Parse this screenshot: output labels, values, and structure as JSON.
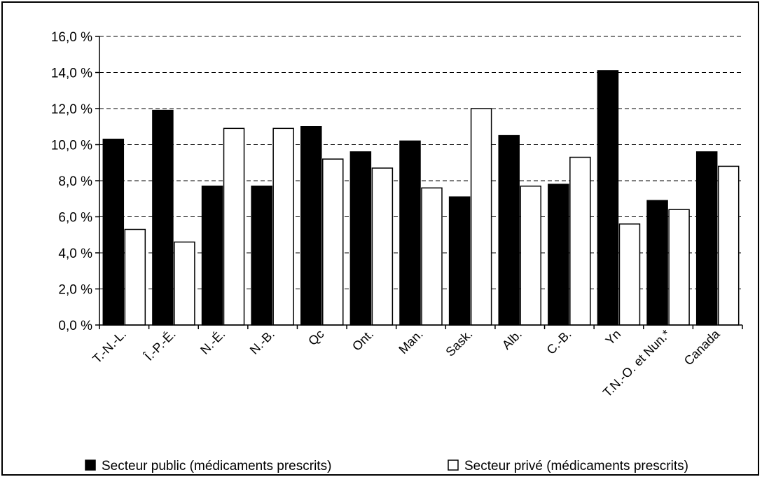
{
  "chart_data": {
    "type": "bar",
    "title": "",
    "xlabel": "",
    "ylabel": "",
    "ylim": [
      0,
      16
    ],
    "y_ticks": [
      0,
      2,
      4,
      6,
      8,
      10,
      12,
      14,
      16
    ],
    "y_tick_labels": [
      "0,0 %",
      "2,0 %",
      "4,0 %",
      "6,0 %",
      "8,0 %",
      "10,0 %",
      "12,0 %",
      "14,0 %",
      "16,0 %"
    ],
    "grid": "horizontal dashed",
    "legend_position": "bottom",
    "categories": [
      "T.-N.-L.",
      "Î.-P.-É.",
      "N.-É.",
      "N.-B.",
      "Qc",
      "Ont.",
      "Man.",
      "Sask.",
      "Alb.",
      "C.-B.",
      "Yn",
      "T.N.-O. et Nun.*",
      "Canada"
    ],
    "series": [
      {
        "name": "Secteur public (médicaments prescrits)",
        "color": "#000000",
        "values": [
          10.3,
          11.9,
          7.7,
          7.7,
          11.0,
          9.6,
          10.2,
          7.1,
          10.5,
          7.8,
          14.1,
          6.9,
          9.6
        ]
      },
      {
        "name": "Secteur privé (médicaments prescrits)",
        "color": "#ffffff",
        "values": [
          5.3,
          4.6,
          10.9,
          10.9,
          9.2,
          8.7,
          7.6,
          12.0,
          7.7,
          9.3,
          5.6,
          6.4,
          8.8
        ]
      }
    ]
  }
}
